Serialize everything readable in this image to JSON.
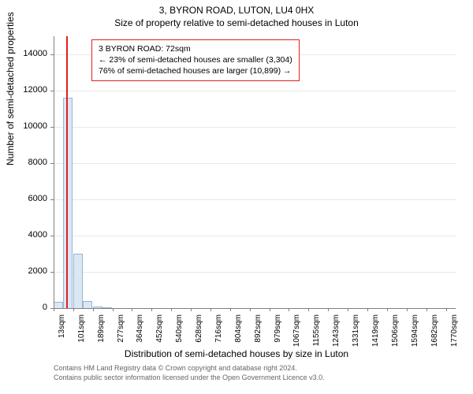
{
  "header": {
    "address": "3, BYRON ROAD, LUTON, LU4 0HX",
    "subtitle": "Size of property relative to semi-detached houses in Luton"
  },
  "chart": {
    "type": "histogram",
    "background_color": "#ffffff",
    "grid_color": "#e8e8e8",
    "axis_color": "#808080",
    "bar_fill": "#dbe7f5",
    "bar_stroke": "#9ab4d0",
    "marker_color": "#e02020",
    "ylabel": "Number of semi-detached properties",
    "xlabel": "Distribution of semi-detached houses by size in Luton",
    "ylim": [
      0,
      15000
    ],
    "ytick_step": 2000,
    "yticks": [
      0,
      2000,
      4000,
      6000,
      8000,
      10000,
      12000,
      14000
    ],
    "xticks": [
      13,
      101,
      189,
      277,
      364,
      452,
      540,
      628,
      716,
      804,
      892,
      979,
      1067,
      1155,
      1243,
      1331,
      1419,
      1506,
      1594,
      1682,
      1770
    ],
    "xtick_suffix": "sqm",
    "xlim": [
      13,
      1814
    ],
    "bars": [
      {
        "x0": 13,
        "x1": 57,
        "count": 350
      },
      {
        "x0": 57,
        "x1": 101,
        "count": 11600
      },
      {
        "x0": 101,
        "x1": 145,
        "count": 3000
      },
      {
        "x0": 145,
        "x1": 189,
        "count": 400
      },
      {
        "x0": 189,
        "x1": 233,
        "count": 80
      },
      {
        "x0": 233,
        "x1": 277,
        "count": 40
      }
    ],
    "marker_x": 72,
    "label_fontsize": 12,
    "tick_fontsize": 11
  },
  "annotation": {
    "border_color": "#e02020",
    "line1": "3 BYRON ROAD: 72sqm",
    "line2": "← 23% of semi-detached houses are smaller (3,304)",
    "line3": "76% of semi-detached houses are larger (10,899) →"
  },
  "credits": {
    "line1": "Contains HM Land Registry data © Crown copyright and database right 2024.",
    "line2": "Contains public sector information licensed under the Open Government Licence v3.0."
  }
}
